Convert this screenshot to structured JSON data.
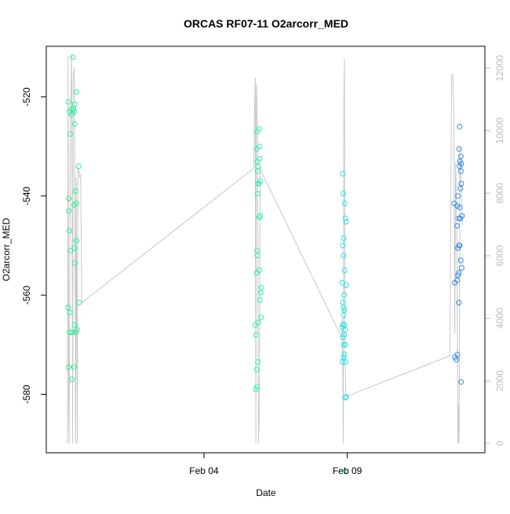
{
  "chart_data": {
    "type": "scatter",
    "title": "ORCAS RF07-11 O2arcorr_MED",
    "xlabel": "Date",
    "ylabel": "O2arcorr_MED",
    "x_ticks": [
      "Feb 04",
      "Feb 09"
    ],
    "y_ticks": [
      -520,
      -540,
      -560,
      -580
    ],
    "y2_ticks": [
      0,
      2000,
      4000,
      6000,
      8000,
      10000,
      12000
    ],
    "x_range_days": [
      -1.5,
      13.8
    ],
    "ylim": [
      -591.8,
      -509.8
    ],
    "y2lim": [
      -300,
      12700
    ],
    "grid": false,
    "series": [
      {
        "color": "#2af09a",
        "points": [
          [
            -0.57,
            -512
          ],
          [
            -0.45,
            -519
          ],
          [
            -0.51,
            -521.5
          ],
          [
            -0.55,
            -522.5
          ],
          [
            -0.52,
            -523
          ],
          [
            -0.63,
            -522.5
          ],
          [
            -0.73,
            -521
          ],
          [
            -0.62,
            -523.5
          ],
          [
            -0.69,
            -523
          ],
          [
            -0.51,
            -525.5
          ],
          [
            -0.67,
            -527.5
          ],
          [
            -0.37,
            -534
          ],
          [
            -0.72,
            -540.5
          ],
          [
            -0.48,
            -539
          ],
          [
            -0.45,
            -541.5
          ],
          [
            -0.53,
            -541.8
          ],
          [
            -0.72,
            -543
          ],
          [
            -0.7,
            -547
          ],
          [
            -0.45,
            -549
          ],
          [
            -0.52,
            -550.5
          ],
          [
            -0.65,
            -551
          ],
          [
            -0.51,
            -553.5
          ],
          [
            -0.36,
            -561.5
          ],
          [
            -0.74,
            -562.5
          ],
          [
            -0.68,
            -563.5
          ],
          [
            -0.52,
            -566
          ],
          [
            -0.69,
            -567.5
          ],
          [
            -0.48,
            -567.5
          ],
          [
            -0.43,
            -567
          ],
          [
            -0.6,
            -567.5
          ],
          [
            -0.72,
            -574.5
          ],
          [
            -0.53,
            -574.5
          ],
          [
            -0.6,
            -577
          ]
        ]
      },
      {
        "color": "#30f0b8",
        "points": [
          [
            5.92,
            -526.5
          ],
          [
            5.86,
            -527
          ],
          [
            5.93,
            -530
          ],
          [
            5.85,
            -530.5
          ],
          [
            5.94,
            -532.5
          ],
          [
            5.86,
            -533
          ],
          [
            5.88,
            -534
          ],
          [
            5.87,
            -535
          ],
          [
            5.96,
            -537
          ],
          [
            5.87,
            -537.5
          ],
          [
            5.92,
            -537.5
          ],
          [
            5.87,
            -539.5
          ],
          [
            5.96,
            -544
          ],
          [
            5.93,
            -544.3
          ],
          [
            5.85,
            -551
          ],
          [
            5.87,
            -552
          ],
          [
            5.93,
            -555
          ],
          [
            5.84,
            -555.5
          ],
          [
            6.0,
            -558.5
          ],
          [
            5.98,
            -559.5
          ],
          [
            5.95,
            -561
          ],
          [
            6.0,
            -564.5
          ],
          [
            5.89,
            -565.5
          ],
          [
            5.79,
            -566
          ],
          [
            5.81,
            -568
          ],
          [
            5.88,
            -573.5
          ],
          [
            5.84,
            -575
          ],
          [
            5.85,
            -578.5
          ],
          [
            5.81,
            -579
          ]
        ]
      },
      {
        "color": "#27e6e6",
        "points": [
          [
            8.84,
            -535.5
          ],
          [
            8.86,
            -539.5
          ],
          [
            8.91,
            -541.5
          ],
          [
            8.93,
            -544.5
          ],
          [
            8.96,
            -545.2
          ],
          [
            8.87,
            -548.5
          ],
          [
            8.84,
            -550
          ],
          [
            8.87,
            -552
          ],
          [
            8.91,
            -555
          ],
          [
            8.82,
            -557.5
          ],
          [
            8.96,
            -558
          ],
          [
            8.89,
            -560
          ],
          [
            8.85,
            -561.5
          ],
          [
            8.87,
            -562.5
          ],
          [
            8.9,
            -563
          ],
          [
            8.87,
            -564
          ],
          [
            8.85,
            -566
          ],
          [
            8.9,
            -566
          ],
          [
            8.82,
            -566.5
          ],
          [
            8.93,
            -567
          ],
          [
            8.89,
            -568
          ],
          [
            8.84,
            -568.5
          ],
          [
            8.94,
            -570
          ],
          [
            8.87,
            -570
          ],
          [
            8.9,
            -572
          ],
          [
            8.87,
            -572.5
          ],
          [
            8.84,
            -573.5
          ],
          [
            8.94,
            -573.5
          ],
          [
            8.96,
            -580.5
          ],
          [
            8.94,
            -580.7
          ],
          [
            8.94,
            -595.5
          ]
        ]
      },
      {
        "color": "#2e8ae6",
        "points": [
          [
            12.92,
            -526
          ],
          [
            12.9,
            -530.5
          ],
          [
            12.96,
            -532
          ],
          [
            12.93,
            -533
          ],
          [
            12.97,
            -533.5
          ],
          [
            12.92,
            -534
          ],
          [
            12.96,
            -535
          ],
          [
            12.98,
            -537.5
          ],
          [
            12.94,
            -538.5
          ],
          [
            12.86,
            -540
          ],
          [
            12.73,
            -541.5
          ],
          [
            12.83,
            -542
          ],
          [
            12.92,
            -542.3
          ],
          [
            12.89,
            -544.5
          ],
          [
            13.0,
            -544
          ],
          [
            12.94,
            -544.5
          ],
          [
            12.83,
            -546
          ],
          [
            12.9,
            -550
          ],
          [
            12.92,
            -550
          ],
          [
            12.86,
            -550.5
          ],
          [
            12.96,
            -553
          ],
          [
            12.99,
            -554.5
          ],
          [
            12.89,
            -555.5
          ],
          [
            12.86,
            -556
          ],
          [
            12.83,
            -557
          ],
          [
            12.75,
            -557.5
          ],
          [
            12.89,
            -561.5
          ],
          [
            12.84,
            -572
          ],
          [
            12.76,
            -572.5
          ],
          [
            12.8,
            -573
          ],
          [
            12.97,
            -577.5
          ]
        ]
      }
    ],
    "secondary_series": {
      "color": "#c8c8c8",
      "axis": "right",
      "points": [
        [
          -0.76,
          0
        ],
        [
          -0.74,
          12400
        ],
        [
          -0.72,
          1600
        ],
        [
          -0.7,
          0
        ],
        [
          -0.66,
          10000
        ],
        [
          -0.62,
          12400
        ],
        [
          -0.6,
          8000
        ],
        [
          -0.58,
          0
        ],
        [
          -0.56,
          11800
        ],
        [
          -0.52,
          12000
        ],
        [
          -0.5,
          8000
        ],
        [
          -0.48,
          0
        ],
        [
          -0.46,
          8500
        ],
        [
          -0.42,
          0
        ],
        [
          -0.4,
          8800
        ],
        [
          -0.36,
          8700
        ],
        [
          -0.34,
          8500
        ],
        [
          -0.3,
          8600
        ],
        [
          -0.26,
          4500
        ],
        [
          5.74,
          8800
        ],
        [
          5.77,
          11000
        ],
        [
          5.79,
          11700
        ],
        [
          5.81,
          0
        ],
        [
          5.83,
          11500
        ],
        [
          5.85,
          11000
        ],
        [
          5.87,
          9500
        ],
        [
          5.9,
          0
        ],
        [
          5.93,
          1000
        ],
        [
          5.96,
          8900
        ],
        [
          6.0,
          8700
        ],
        [
          8.8,
          3400
        ],
        [
          8.82,
          4000
        ],
        [
          8.84,
          2500
        ],
        [
          8.86,
          0
        ],
        [
          8.88,
          11000
        ],
        [
          8.9,
          12300
        ],
        [
          8.92,
          3000
        ],
        [
          8.95,
          1500
        ],
        [
          12.58,
          2800
        ],
        [
          12.64,
          11800
        ],
        [
          12.68,
          11800
        ],
        [
          12.72,
          10500
        ],
        [
          12.75,
          3500
        ],
        [
          12.78,
          9000
        ],
        [
          12.82,
          7000
        ],
        [
          12.86,
          0
        ],
        [
          12.88,
          1200
        ],
        [
          12.9,
          0
        ],
        [
          12.93,
          9500
        ],
        [
          12.96,
          8500
        ],
        [
          12.99,
          8000
        ],
        [
          13.02,
          7000
        ]
      ]
    }
  }
}
